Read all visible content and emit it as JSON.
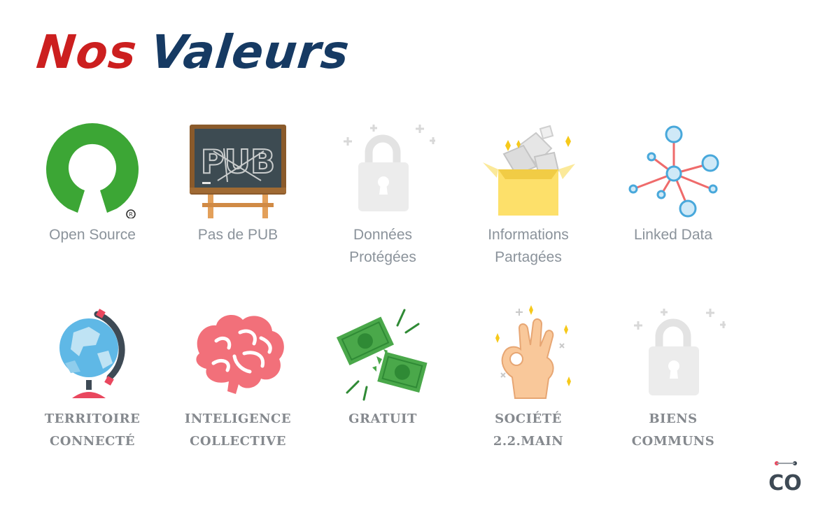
{
  "title": {
    "word1": "Nos",
    "word2": "Valeurs"
  },
  "row1": [
    {
      "lines": [
        "Open Source"
      ],
      "icon": "open-source-icon"
    },
    {
      "lines": [
        "Pas de PUB"
      ],
      "icon": "chalkboard-icon"
    },
    {
      "lines": [
        "Données",
        "Protégées"
      ],
      "icon": "lock-icon"
    },
    {
      "lines": [
        "Informations",
        "Partagées"
      ],
      "icon": "open-box-icon"
    },
    {
      "lines": [
        "Linked Data"
      ],
      "icon": "network-icon"
    }
  ],
  "row2": [
    {
      "lines": [
        "TERRITOIRE",
        "CONNECTÉ"
      ],
      "icon": "globe-icon"
    },
    {
      "lines": [
        "INTELIGENCE",
        "COLLECTIVE"
      ],
      "icon": "brain-icon"
    },
    {
      "lines": [
        "GRATUIT"
      ],
      "icon": "torn-banknote-icon"
    },
    {
      "lines": [
        "SOCIÉTÉ",
        "2.2.MAIN"
      ],
      "icon": "ok-hand-icon"
    },
    {
      "lines": [
        "BIENS",
        "COMMUNS"
      ],
      "icon": "lock-icon"
    }
  ],
  "chalkboard_text": "PUB",
  "logo_text": "CO",
  "colors": {
    "title_red": "#cc1f1f",
    "title_blue": "#163a63",
    "label_gray": "#8b939b"
  }
}
